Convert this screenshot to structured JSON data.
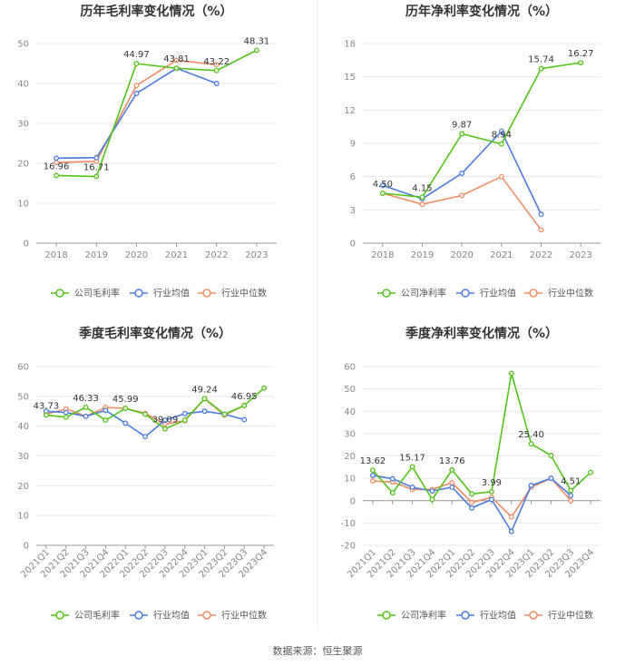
{
  "source": "数据来源：恒生聚源",
  "chart_data": [
    {
      "id": "annual-gross",
      "type": "line",
      "title": "历年毛利率变化情况（%）",
      "categories": [
        "2018",
        "2019",
        "2020",
        "2021",
        "2022",
        "2023"
      ],
      "ylim": [
        0,
        50
      ],
      "yticks": [
        0,
        10,
        20,
        30,
        40,
        50
      ],
      "series": [
        {
          "name": "公司毛利率",
          "color": "#52c41a",
          "values": [
            16.96,
            16.71,
            44.97,
            43.81,
            43.22,
            48.31
          ]
        },
        {
          "name": "行业均值",
          "color": "#4a7be0",
          "values": [
            21.3,
            21.4,
            37.5,
            43.8,
            40.0,
            null
          ]
        },
        {
          "name": "行业中位数",
          "color": "#f08c64",
          "values": [
            20.2,
            20.5,
            39.5,
            45.8,
            44.7,
            null
          ]
        }
      ],
      "labels": [
        {
          "index": 0,
          "text": "16.96"
        },
        {
          "index": 1,
          "text": "16.71"
        },
        {
          "index": 2,
          "text": "44.97"
        },
        {
          "index": 3,
          "text": "43.81"
        },
        {
          "index": 4,
          "text": "43.22"
        },
        {
          "index": 5,
          "text": "48.31"
        }
      ]
    },
    {
      "id": "annual-net",
      "type": "line",
      "title": "历年净利率变化情况（%）",
      "categories": [
        "2018",
        "2019",
        "2020",
        "2021",
        "2022",
        "2023"
      ],
      "ylim": [
        0,
        18
      ],
      "yticks": [
        0,
        3,
        6,
        9,
        12,
        15,
        18
      ],
      "series": [
        {
          "name": "公司净利率",
          "color": "#52c41a",
          "values": [
            4.5,
            4.15,
            9.87,
            8.94,
            15.74,
            16.27
          ]
        },
        {
          "name": "行业均值",
          "color": "#4a7be0",
          "values": [
            5.2,
            4.0,
            6.3,
            10.1,
            2.6,
            null
          ]
        },
        {
          "name": "行业中位数",
          "color": "#f08c64",
          "values": [
            4.5,
            3.5,
            4.3,
            6.0,
            1.2,
            null
          ]
        }
      ],
      "labels": [
        {
          "index": 0,
          "text": "4.50"
        },
        {
          "index": 1,
          "text": "4.15"
        },
        {
          "index": 2,
          "text": "9.87"
        },
        {
          "index": 3,
          "text": "8.94"
        },
        {
          "index": 4,
          "text": "15.74"
        },
        {
          "index": 5,
          "text": "16.27"
        }
      ]
    },
    {
      "id": "quarterly-gross",
      "type": "line",
      "title": "季度毛利率变化情况（%）",
      "categories": [
        "2021Q1",
        "2021Q2",
        "2021Q3",
        "2021Q4",
        "2022Q1",
        "2022Q2",
        "2022Q3",
        "2022Q4",
        "2023Q1",
        "2023Q2",
        "2023Q3",
        "2023Q4"
      ],
      "ylim": [
        0,
        60
      ],
      "yticks": [
        0,
        10,
        20,
        30,
        40,
        50,
        60
      ],
      "series": [
        {
          "name": "公司毛利率",
          "color": "#52c41a",
          "values": [
            43.73,
            43.0,
            46.33,
            42.0,
            45.99,
            44.0,
            39.09,
            42.0,
            49.24,
            44.0,
            46.95,
            52.8
          ]
        },
        {
          "name": "行业均值",
          "color": "#4a7be0",
          "values": [
            45.0,
            44.6,
            43.3,
            45.3,
            41.0,
            36.5,
            42.0,
            44.2,
            45.0,
            44.0,
            42.2,
            null
          ]
        },
        {
          "name": "行业中位数",
          "color": "#f08c64",
          "values": [
            44.0,
            45.8,
            43.3,
            46.3,
            46.0,
            44.3,
            40.7,
            41.8,
            49.2,
            43.7,
            46.9,
            null
          ]
        }
      ],
      "labels": [
        {
          "index": 0,
          "text": "43.73"
        },
        {
          "index": 2,
          "text": "46.33"
        },
        {
          "index": 4,
          "text": "45.99"
        },
        {
          "index": 6,
          "text": "39.09"
        },
        {
          "index": 8,
          "text": "49.24"
        },
        {
          "index": 10,
          "text": "46.95"
        }
      ]
    },
    {
      "id": "quarterly-net",
      "type": "line",
      "title": "季度净利率变化情况（%）",
      "categories": [
        "2021Q1",
        "2021Q2",
        "2021Q3",
        "2021Q4",
        "2022Q1",
        "2022Q2",
        "2022Q3",
        "2022Q4",
        "2023Q1",
        "2023Q2",
        "2023Q3",
        "2023Q4"
      ],
      "ylim": [
        -20,
        60
      ],
      "yticks": [
        -20,
        -10,
        0,
        10,
        20,
        30,
        40,
        50,
        60
      ],
      "series": [
        {
          "name": "公司净利率",
          "color": "#52c41a",
          "values": [
            13.62,
            3.5,
            15.17,
            0.5,
            13.76,
            3.0,
            3.99,
            57.0,
            25.4,
            20.2,
            4.51,
            12.6
          ]
        },
        {
          "name": "行业均值",
          "color": "#4a7be0",
          "values": [
            11.3,
            9.8,
            6.0,
            4.3,
            6.0,
            -3.3,
            0.5,
            -13.8,
            6.8,
            10.0,
            2.3,
            null
          ]
        },
        {
          "name": "行业中位数",
          "color": "#f08c64",
          "values": [
            8.8,
            8.3,
            5.0,
            5.0,
            8.0,
            -0.8,
            1.5,
            -7.3,
            6.0,
            10.0,
            0.0,
            null
          ]
        }
      ],
      "labels": [
        {
          "index": 0,
          "text": "13.62"
        },
        {
          "index": 2,
          "text": "15.17"
        },
        {
          "index": 4,
          "text": "13.76"
        },
        {
          "index": 6,
          "text": "3.99"
        },
        {
          "index": 8,
          "text": "25.40"
        },
        {
          "index": 10,
          "text": "4.51"
        }
      ]
    }
  ]
}
